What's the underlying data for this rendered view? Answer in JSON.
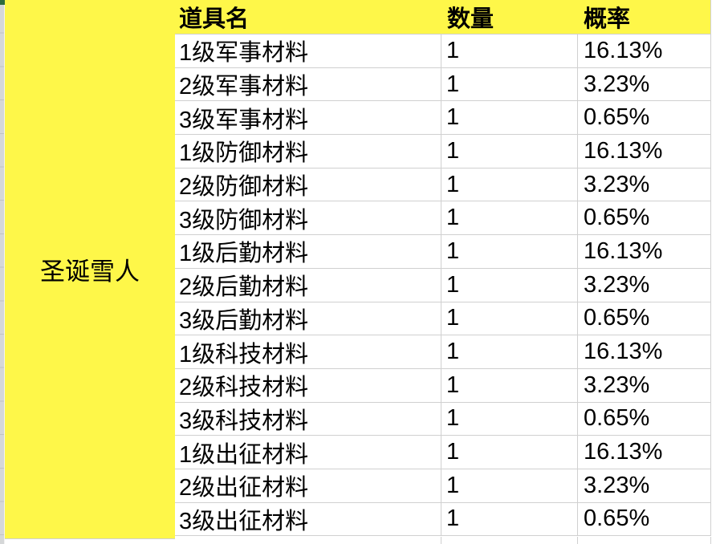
{
  "colors": {
    "highlight_yellow": "#fef749",
    "grid_line": "#d0d0d0",
    "pane_strip": "#d5d7d8",
    "pane_mark_green": "#2e6b3d"
  },
  "spreadsheet": {
    "merged_cell_label": "圣诞雪人",
    "header": {
      "item": "道具名",
      "quantity": "数量",
      "probability": "概率"
    },
    "rows": [
      {
        "item": "1级军事材料",
        "quantity": "1",
        "probability": "16.13%"
      },
      {
        "item": "2级军事材料",
        "quantity": "1",
        "probability": "3.23%"
      },
      {
        "item": "3级军事材料",
        "quantity": "1",
        "probability": "0.65%"
      },
      {
        "item": "1级防御材料",
        "quantity": "1",
        "probability": "16.13%"
      },
      {
        "item": "2级防御材料",
        "quantity": "1",
        "probability": "3.23%"
      },
      {
        "item": "3级防御材料",
        "quantity": "1",
        "probability": "0.65%"
      },
      {
        "item": "1级后勤材料",
        "quantity": "1",
        "probability": "16.13%"
      },
      {
        "item": "2级后勤材料",
        "quantity": "1",
        "probability": "3.23%"
      },
      {
        "item": "3级后勤材料",
        "quantity": "1",
        "probability": "0.65%"
      },
      {
        "item": "1级科技材料",
        "quantity": "1",
        "probability": "16.13%"
      },
      {
        "item": "2级科技材料",
        "quantity": "1",
        "probability": "3.23%"
      },
      {
        "item": "3级科技材料",
        "quantity": "1",
        "probability": "0.65%"
      },
      {
        "item": "1级出征材料",
        "quantity": "1",
        "probability": "16.13%"
      },
      {
        "item": "2级出征材料",
        "quantity": "1",
        "probability": "3.23%"
      },
      {
        "item": "3级出征材料",
        "quantity": "1",
        "probability": "0.65%"
      }
    ]
  }
}
